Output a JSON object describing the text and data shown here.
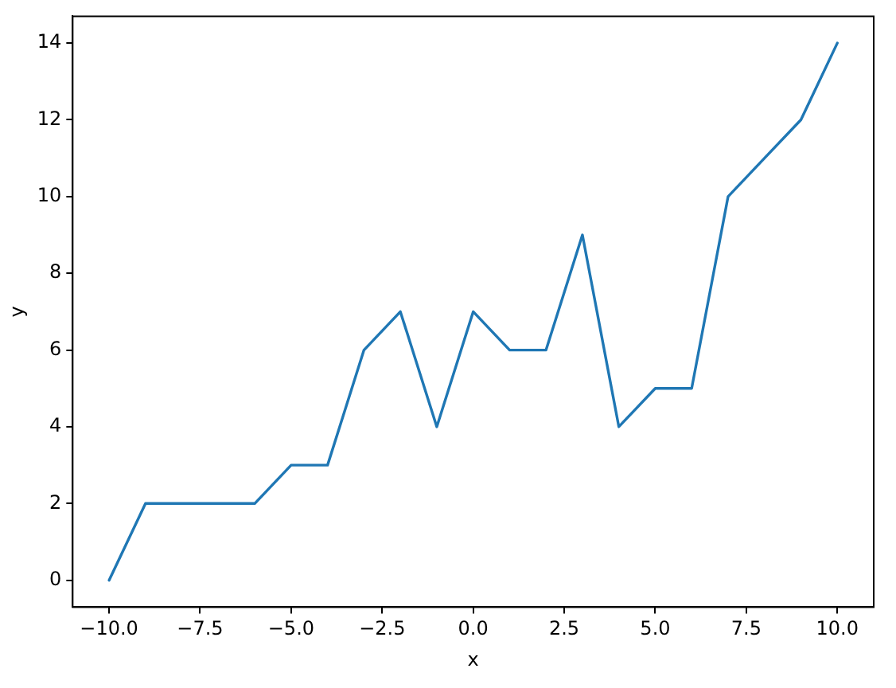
{
  "chart_data": {
    "type": "line",
    "xlabel": "x",
    "ylabel": "y",
    "x": [
      -10,
      -9,
      -8,
      -7,
      -6,
      -5,
      -4,
      -3,
      -2,
      -1,
      0,
      1,
      2,
      3,
      4,
      5,
      6,
      7,
      8,
      9,
      10
    ],
    "series": [
      {
        "color": "#1f77b4",
        "values": [
          0,
          2,
          2,
          2,
          2,
          3,
          3,
          6,
          7,
          4,
          7,
          6,
          6,
          9,
          4,
          5,
          5,
          10,
          11,
          12,
          14
        ]
      }
    ],
    "xlim": [
      -11,
      11
    ],
    "xticks": [
      {
        "value": -10,
        "label": "−10.0"
      },
      {
        "value": -7.5,
        "label": "−7.5"
      },
      {
        "value": -5,
        "label": "−5.0"
      },
      {
        "value": -2.5,
        "label": "−2.5"
      },
      {
        "value": 0,
        "label": "0.0"
      },
      {
        "value": 2.5,
        "label": "2.5"
      },
      {
        "value": 5,
        "label": "5.0"
      },
      {
        "value": 7.5,
        "label": "7.5"
      },
      {
        "value": 10,
        "label": "10.0"
      }
    ],
    "ylim": [
      -0.7,
      14.7
    ],
    "yticks": [
      0,
      2,
      4,
      6,
      8,
      10,
      12,
      14
    ],
    "grid": false,
    "legend": false,
    "marker": "none",
    "line_style": "solid"
  }
}
